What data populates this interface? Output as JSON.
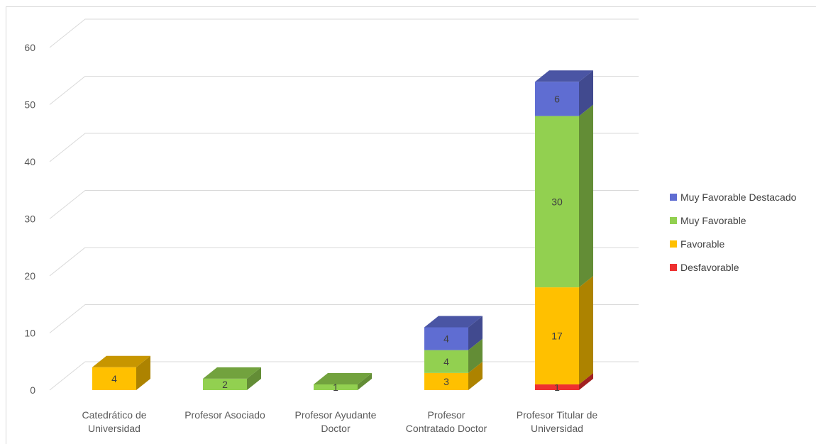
{
  "chart_data": {
    "type": "bar",
    "stacked": true,
    "style": "3d-column",
    "title": "",
    "xlabel": "",
    "ylabel": "",
    "ylim": [
      0,
      60
    ],
    "yticks": [
      0,
      10,
      20,
      30,
      40,
      50,
      60
    ],
    "grid": true,
    "legend_position": "right",
    "categories": [
      [
        "Catedrático de",
        "Universidad"
      ],
      [
        "Profesor Asociado"
      ],
      [
        "Profesor Ayudante",
        "Doctor"
      ],
      [
        "Profesor",
        "Contratado Doctor"
      ],
      [
        "Profesor Titular de",
        "Universidad"
      ]
    ],
    "series": [
      {
        "name": "Desfavorable",
        "color": "#ee3030",
        "values": [
          0,
          0,
          0,
          0,
          1
        ]
      },
      {
        "name": "Favorable",
        "color": "#ffc000",
        "values": [
          4,
          0,
          0,
          3,
          17
        ]
      },
      {
        "name": "Muy Favorable",
        "color": "#92d050",
        "values": [
          0,
          2,
          1,
          4,
          30
        ]
      },
      {
        "name": "Muy Favorable Destacado",
        "color": "#5f6dd2",
        "values": [
          0,
          0,
          0,
          4,
          6
        ]
      }
    ]
  }
}
